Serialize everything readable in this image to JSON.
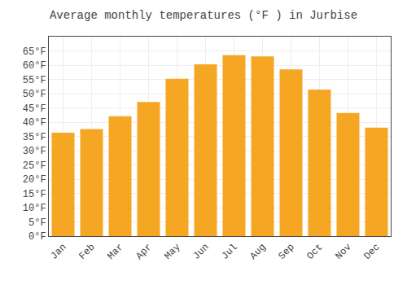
{
  "chart_data": {
    "type": "bar",
    "title": "Average monthly temperatures (°F ) in Jurbise",
    "categories": [
      "Jan",
      "Feb",
      "Mar",
      "Apr",
      "May",
      "Jun",
      "Jul",
      "Aug",
      "Sep",
      "Oct",
      "Nov",
      "Dec"
    ],
    "values": [
      36.3,
      37.6,
      42.1,
      47.1,
      55.2,
      60.3,
      63.5,
      63.1,
      58.5,
      51.4,
      43.2,
      38.1
    ],
    "color": "#F5A623",
    "ylim": [
      0,
      70
    ],
    "yticks": [
      {
        "value": 0,
        "label": "0°F"
      },
      {
        "value": 5,
        "label": "5°F"
      },
      {
        "value": 10,
        "label": "10°F"
      },
      {
        "value": 15,
        "label": "15°F"
      },
      {
        "value": 20,
        "label": "20°F"
      },
      {
        "value": 25,
        "label": "25°F"
      },
      {
        "value": 30,
        "label": "30°F"
      },
      {
        "value": 35,
        "label": "35°F"
      },
      {
        "value": 40,
        "label": "40°F"
      },
      {
        "value": 45,
        "label": "45°F"
      },
      {
        "value": 50,
        "label": "50°F"
      },
      {
        "value": 55,
        "label": "55°F"
      },
      {
        "value": 60,
        "label": "60°F"
      },
      {
        "value": 65,
        "label": "65°F"
      }
    ],
    "grid": true
  }
}
